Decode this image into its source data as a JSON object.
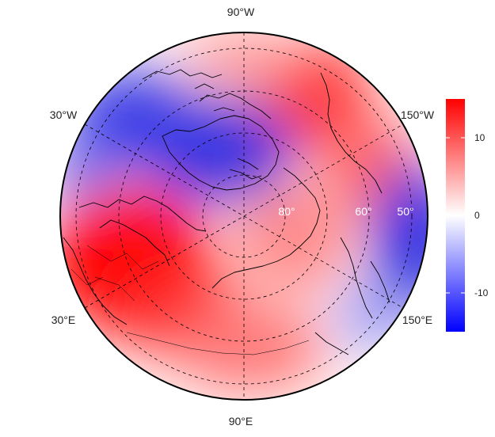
{
  "map": {
    "projection": "north-polar-stereographic",
    "longitude_labels": [
      {
        "text": "90°W",
        "lon": -90
      },
      {
        "text": "150°W",
        "lon": -150
      },
      {
        "text": "150°E",
        "lon": 150
      },
      {
        "text": "90°E",
        "lon": 90
      },
      {
        "text": "30°E",
        "lon": 30
      },
      {
        "text": "30°W",
        "lon": -30
      }
    ],
    "latitude_labels": [
      {
        "text": "80°",
        "lat": 80
      },
      {
        "text": "60°",
        "lat": 60
      },
      {
        "text": "50°",
        "lat": 50
      }
    ],
    "graticule": {
      "lat_circles": [
        80,
        70,
        60,
        50
      ],
      "meridians_every_deg": 60,
      "style": "dashed"
    },
    "anomaly_field": [
      {
        "region": "Greenland / Canadian Archipelago",
        "value": -10
      },
      {
        "region": "North Atlantic / Labrador",
        "value": -8
      },
      {
        "region": "Europe / Western Russia",
        "value": 14
      },
      {
        "region": "Siberia",
        "value": 6
      },
      {
        "region": "Arctic Ocean (Asian side)",
        "value": 4
      },
      {
        "region": "Alaska / North Pacific",
        "value": 7
      },
      {
        "region": "Bering Sea / Far East",
        "value": -9
      }
    ]
  },
  "colorbar": {
    "min": -15,
    "max": 15,
    "ticks": [
      {
        "value": 10,
        "label": "10"
      },
      {
        "value": 0,
        "label": "0"
      },
      {
        "value": -10,
        "label": "-10"
      }
    ],
    "colors": {
      "low": "#0000ff",
      "mid": "#ffffff",
      "high": "#ff0000"
    }
  }
}
